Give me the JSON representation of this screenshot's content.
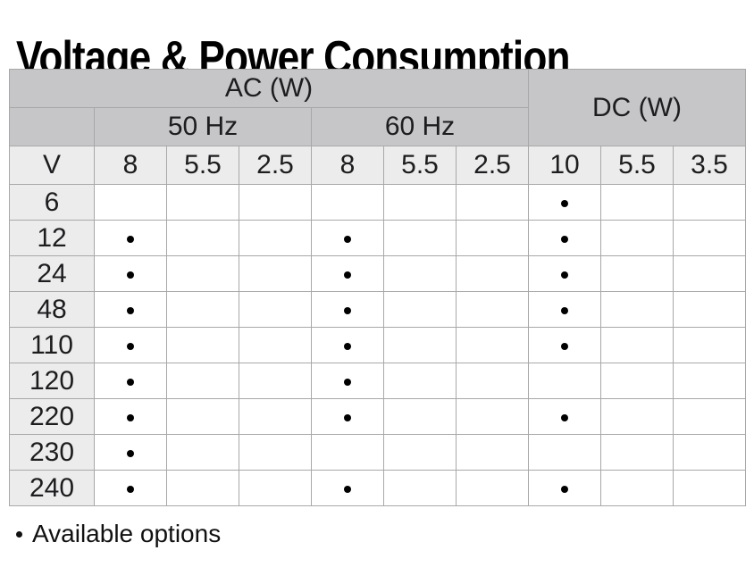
{
  "title": "Voltage & Power Consumption",
  "table": {
    "group_headers": {
      "ac": "AC (W)",
      "dc": "DC (W)"
    },
    "freq_headers": {
      "hz50": "50 Hz",
      "hz60": "60 Hz"
    },
    "col_headers": [
      "V",
      "8",
      "5.5",
      "2.5",
      "8",
      "5.5",
      "2.5",
      "10",
      "5.5",
      "3.5"
    ],
    "rows": [
      {
        "voltage": "6",
        "marks": [
          0,
          0,
          0,
          0,
          0,
          0,
          1,
          0,
          0
        ]
      },
      {
        "voltage": "12",
        "marks": [
          1,
          0,
          0,
          1,
          0,
          0,
          1,
          0,
          0
        ]
      },
      {
        "voltage": "24",
        "marks": [
          1,
          0,
          0,
          1,
          0,
          0,
          1,
          0,
          0
        ]
      },
      {
        "voltage": "48",
        "marks": [
          1,
          0,
          0,
          1,
          0,
          0,
          1,
          0,
          0
        ]
      },
      {
        "voltage": "110",
        "marks": [
          1,
          0,
          0,
          1,
          0,
          0,
          1,
          0,
          0
        ]
      },
      {
        "voltage": "120",
        "marks": [
          1,
          0,
          0,
          1,
          0,
          0,
          0,
          0,
          0
        ]
      },
      {
        "voltage": "220",
        "marks": [
          1,
          0,
          0,
          1,
          0,
          0,
          1,
          0,
          0
        ]
      },
      {
        "voltage": "230",
        "marks": [
          1,
          0,
          0,
          0,
          0,
          0,
          0,
          0,
          0
        ]
      },
      {
        "voltage": "240",
        "marks": [
          1,
          0,
          0,
          1,
          0,
          0,
          1,
          0,
          0
        ]
      }
    ],
    "mark_symbol": "•"
  },
  "footnote": {
    "bullet": "•",
    "text": "Available options"
  },
  "colors": {
    "header_bg": "#c6c6c8",
    "subheader_bg": "#ececec",
    "border": "#a8a8a8",
    "cell_bg": "#ffffff",
    "text": "#1a1a1a",
    "dot": "#000000"
  }
}
